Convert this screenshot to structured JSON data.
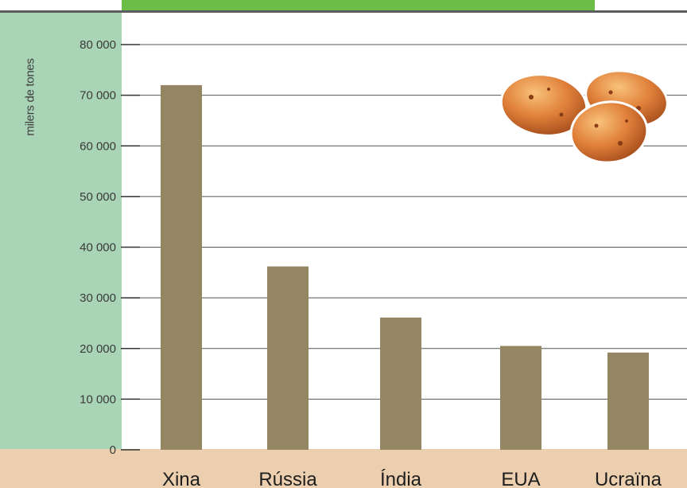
{
  "colors": {
    "bar": "#958663",
    "left_band": "#a9d4b5",
    "bottom_band": "#eccfaf",
    "title_banner": "#6cbd45",
    "grid": "#555555"
  },
  "icons": [
    "potatoes-illustration"
  ],
  "chart_data": {
    "type": "bar",
    "title": "",
    "ylabel": "milers de tones",
    "xlabel": "",
    "categories": [
      "Xina",
      "Rússia",
      "Índia",
      "EUA",
      "Ucraïna"
    ],
    "values": [
      72000,
      36200,
      26100,
      20500,
      19200
    ],
    "ylim": [
      0,
      80000
    ],
    "yticks": [
      0,
      10000,
      20000,
      30000,
      40000,
      50000,
      60000,
      70000,
      80000
    ],
    "ytick_labels": [
      "0",
      "10 000",
      "20 000",
      "30 000",
      "40 000",
      "50 000",
      "60 000",
      "70 000",
      "80 000"
    ],
    "grid": true,
    "legend": "none"
  }
}
